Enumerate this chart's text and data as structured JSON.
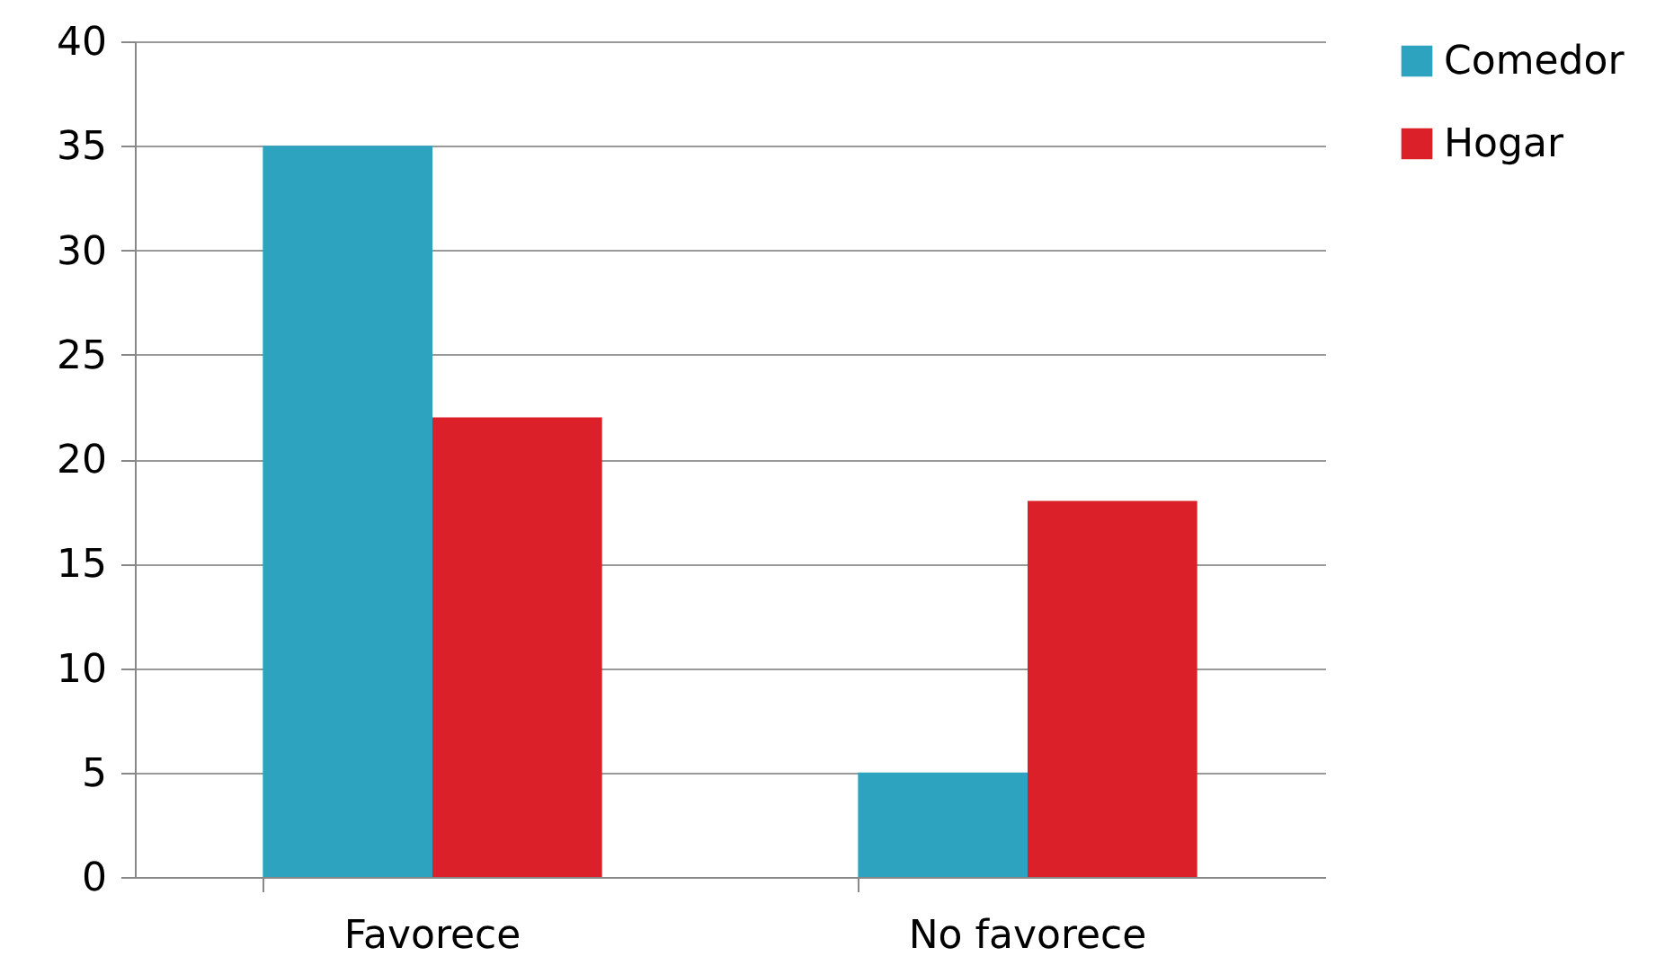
{
  "chart_data": {
    "type": "bar",
    "categories": [
      "Favorece",
      "No favorece"
    ],
    "series": [
      {
        "name": "Comedor",
        "color": "#2ea3c0",
        "values": [
          35,
          5
        ]
      },
      {
        "name": "Hogar",
        "color": "#dc2029",
        "values": [
          22,
          18
        ]
      }
    ],
    "ylim": [
      0,
      40
    ],
    "yticks": [
      0,
      5,
      10,
      15,
      20,
      25,
      30,
      35,
      40
    ],
    "grid": "y",
    "legend": "right"
  }
}
